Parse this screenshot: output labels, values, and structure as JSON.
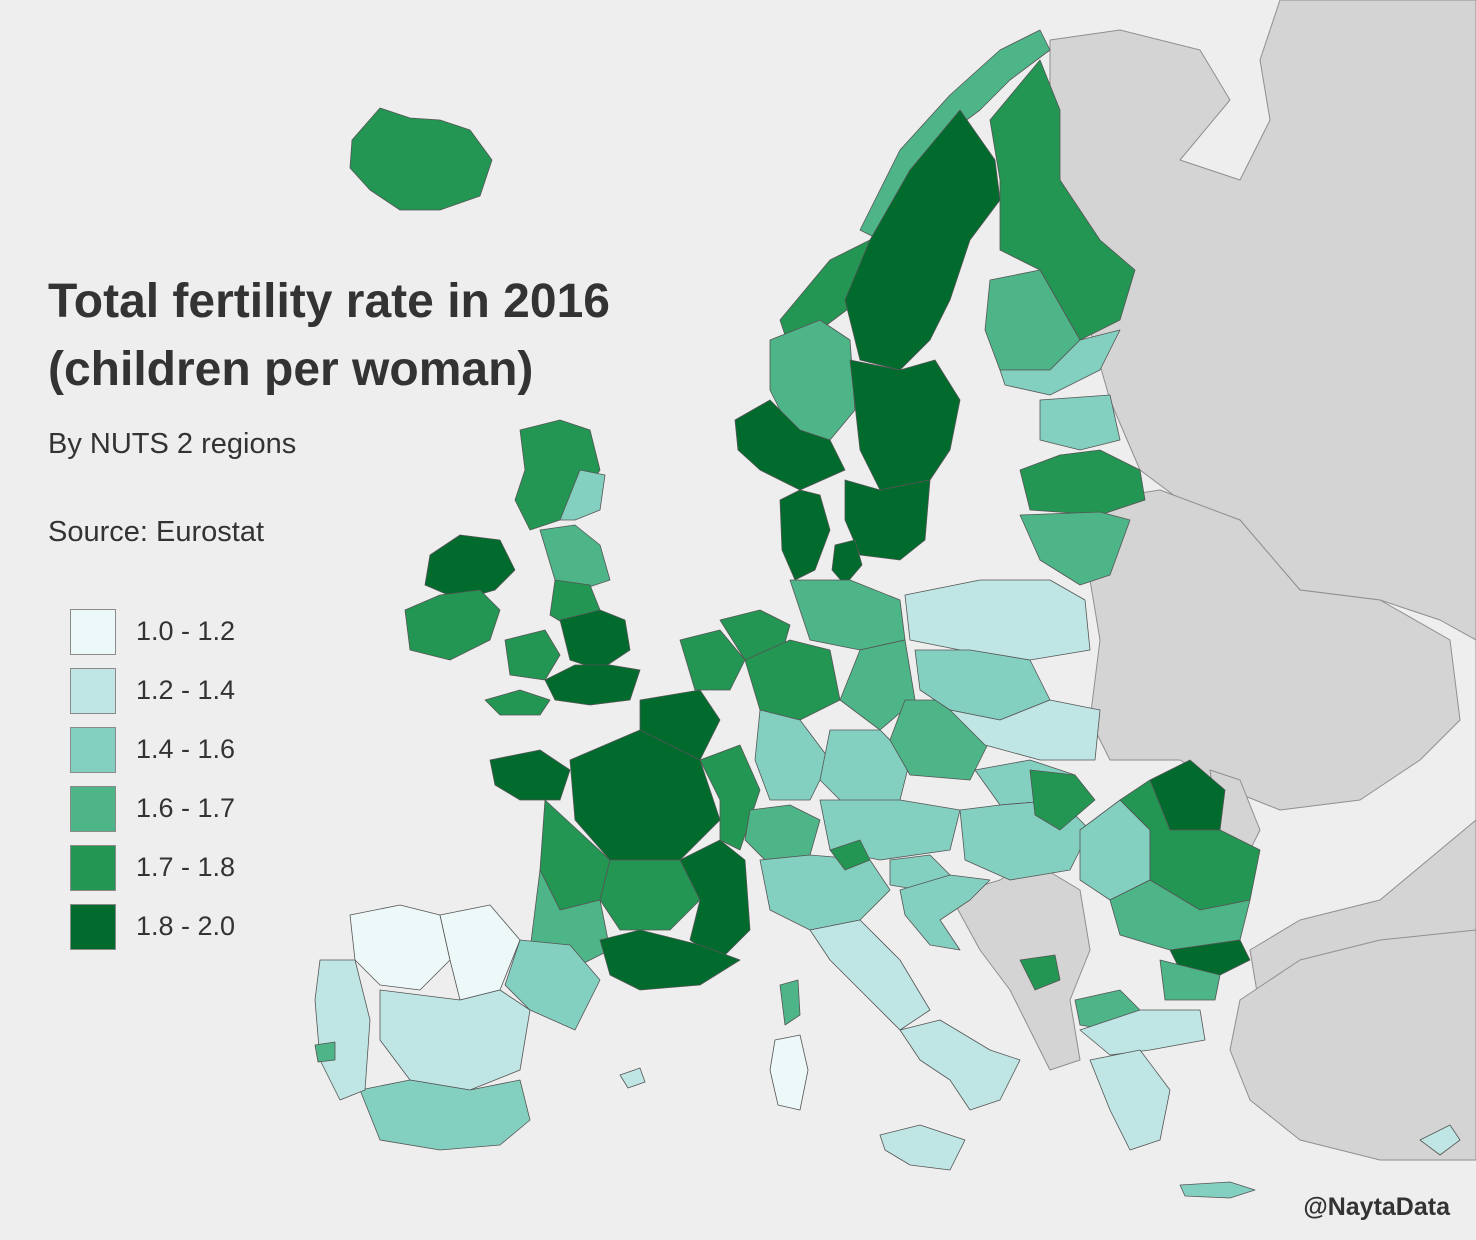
{
  "title": "Total fertility rate in 2016\n(children per woman)",
  "subtitle": "By NUTS 2 regions",
  "source": "Source: Eurostat",
  "credit": "@NaytaData",
  "colors": {
    "background": "#eeeeee",
    "non_eu_land": "#d4d4d4",
    "text": "#333333"
  },
  "legend": [
    {
      "label": "1.0 - 1.2",
      "color": "#edf8f8"
    },
    {
      "label": "1.2 - 1.4",
      "color": "#bfe6e4"
    },
    {
      "label": "1.4 - 1.6",
      "color": "#84d0c0"
    },
    {
      "label": "1.6 - 1.7",
      "color": "#4db588"
    },
    {
      "label": "1.7 - 1.8",
      "color": "#229652"
    },
    {
      "label": "1.8 - 2.0",
      "color": "#016b2e"
    }
  ]
}
